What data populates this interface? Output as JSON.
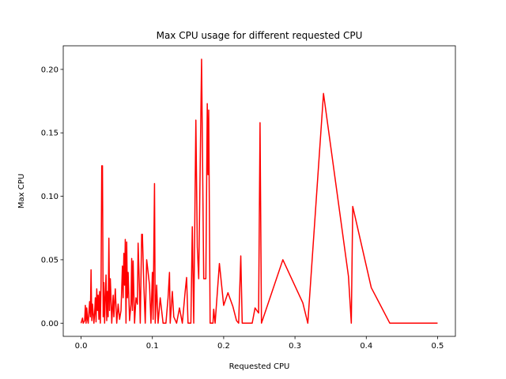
{
  "chart_data": {
    "type": "line",
    "title": "Max CPU usage for different requested CPU",
    "x_label": "Requested CPU",
    "y_label": "Max CPU",
    "xlim": [
      -0.025,
      0.525
    ],
    "ylim": [
      -0.0104,
      0.2186
    ],
    "xticks": [
      {
        "value": 0,
        "label": "0.0"
      },
      0.1,
      0.2,
      0.3,
      0.4,
      0.5
    ],
    "yticks": [
      {
        "value": 0,
        "label": "0.00"
      },
      {
        "value": 0.05,
        "label": "0.05"
      },
      {
        "value": 0.1,
        "label": "0.10"
      },
      {
        "value": 0.15,
        "label": "0.15"
      },
      {
        "value": 0.2,
        "label": "0.20"
      }
    ],
    "x": [
      0.0,
      0.002,
      0.003,
      0.005,
      0.006,
      0.007,
      0.008,
      0.009,
      0.01,
      0.012,
      0.013,
      0.014,
      0.015,
      0.016,
      0.018,
      0.019,
      0.02,
      0.021,
      0.022,
      0.023,
      0.024,
      0.025,
      0.026,
      0.027,
      0.028,
      0.029,
      0.03,
      0.031,
      0.032,
      0.033,
      0.034,
      0.035,
      0.036,
      0.037,
      0.038,
      0.039,
      0.04,
      0.041,
      0.042,
      0.043,
      0.045,
      0.046,
      0.048,
      0.05,
      0.052,
      0.054,
      0.056,
      0.058,
      0.059,
      0.06,
      0.061,
      0.062,
      0.063,
      0.064,
      0.065,
      0.066,
      0.068,
      0.07,
      0.071,
      0.072,
      0.073,
      0.075,
      0.077,
      0.079,
      0.08,
      0.082,
      0.083,
      0.085,
      0.086,
      0.088,
      0.09,
      0.092,
      0.094,
      0.096,
      0.098,
      0.1,
      0.101,
      0.103,
      0.104,
      0.106,
      0.108,
      0.111,
      0.115,
      0.119,
      0.122,
      0.124,
      0.125,
      0.128,
      0.13,
      0.134,
      0.138,
      0.142,
      0.146,
      0.148,
      0.15,
      0.154,
      0.156,
      0.158,
      0.161,
      0.163,
      0.165,
      0.169,
      0.172,
      0.175,
      0.177,
      0.178,
      0.179,
      0.181,
      0.185,
      0.186,
      0.188,
      0.194,
      0.2,
      0.206,
      0.213,
      0.218,
      0.221,
      0.224,
      0.226,
      0.24,
      0.244,
      0.249,
      0.251,
      0.253,
      0.283,
      0.311,
      0.318,
      0.34,
      0.375,
      0.379,
      0.381,
      0.407,
      0.433,
      0.5
    ],
    "series": [
      {
        "name": "Max CPU",
        "color": "#ff0000",
        "values": [
          0.0,
          0.004,
          0.0,
          0.002,
          0.014,
          0.0,
          0.012,
          0.003,
          0.0,
          0.017,
          0.005,
          0.042,
          0.002,
          0.015,
          0.0,
          0.008,
          0.02,
          0.001,
          0.027,
          0.01,
          0.022,
          0.003,
          0.025,
          0.0,
          0.03,
          0.124,
          0.124,
          0.005,
          0.032,
          0.0,
          0.02,
          0.038,
          0.002,
          0.025,
          0.005,
          0.067,
          0.01,
          0.035,
          0.02,
          0.0,
          0.022,
          0.005,
          0.027,
          0.0,
          0.015,
          0.003,
          0.01,
          0.045,
          0.02,
          0.055,
          0.03,
          0.066,
          0.0,
          0.064,
          0.02,
          0.04,
          0.002,
          0.015,
          0.051,
          0.01,
          0.049,
          0.0,
          0.02,
          0.015,
          0.063,
          0.025,
          0.0,
          0.07,
          0.07,
          0.03,
          0.0,
          0.05,
          0.04,
          0.03,
          0.0,
          0.04,
          0.003,
          0.11,
          0.0,
          0.03,
          0.0,
          0.02,
          0.0,
          0.0,
          0.02,
          0.04,
          0.0,
          0.025,
          0.005,
          0.0,
          0.012,
          0.0,
          0.025,
          0.036,
          0.0,
          0.0,
          0.076,
          0.0,
          0.16,
          0.06,
          0.035,
          0.208,
          0.035,
          0.035,
          0.173,
          0.117,
          0.168,
          0.0,
          0.0,
          0.011,
          0.0,
          0.047,
          0.014,
          0.024,
          0.013,
          0.002,
          0.0,
          0.053,
          0.0,
          0.0,
          0.012,
          0.008,
          0.158,
          0.0,
          0.05,
          0.016,
          0.0,
          0.181,
          0.037,
          0.0,
          0.092,
          0.028,
          0.0,
          0.0
        ]
      }
    ]
  }
}
